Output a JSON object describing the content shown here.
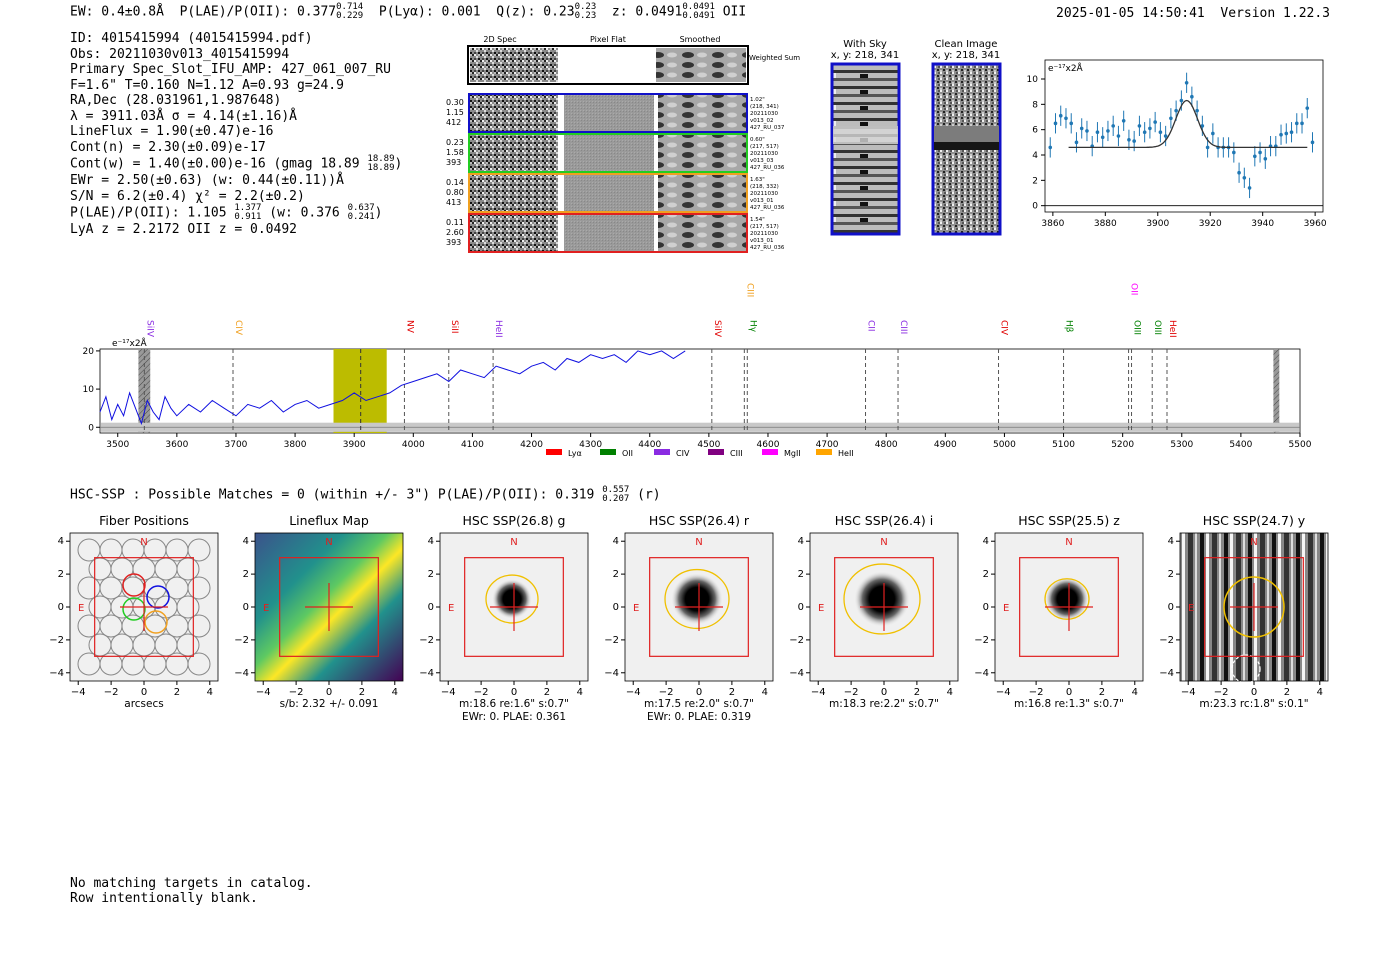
{
  "header": {
    "ew": "EW: 0.4±0.8Å",
    "plae_label": "P(LAE)/P(OII):",
    "plae_val": "0.377",
    "plae_hi": "0.714",
    "plae_lo": "0.229",
    "plya": "P(Lyα): 0.001",
    "qz_label": "Q(z): 0.23",
    "qz_hi": "0.23",
    "qz_lo": "0.23",
    "z_label": "z: 0.0491",
    "z_hi": "0.0491",
    "z_lo": "0.0491",
    "z_line": "OII",
    "timestamp": "2025-01-05 14:50:41",
    "version": "Version 1.22.3"
  },
  "info": {
    "id": "ID: 4015415994 (4015415994.pdf)",
    "obs": "Obs: 20211030v013_4015415994",
    "primary": "Primary Spec_Slot_IFU_AMP: 427_061_007_RU",
    "seeing": "F=1.6\"  T=0.160  N=1.12  A=0.93  g=24.9",
    "radec": "RA,Dec (28.031961,1.987648)",
    "lambda": "λ = 3911.03Å  σ = 4.14(±1.16)Å",
    "lineflux": "LineFlux = 1.90(±0.47)e-16",
    "contn": "Cont(n) = 2.30(±0.09)e-17",
    "contw": "Cont(w) = 1.40(±0.00)e-16 (gmag 18.89",
    "contw_hi": "18.89",
    "contw_lo": "18.89",
    "ewr": "EWr = 2.50(±0.63) (w: 0.44(±0.11))Å",
    "sn": "S/N = 6.2(±0.4)  χ² = 2.2(±0.2)",
    "plae": "P(LAE)/P(OII): 1.105",
    "plae_hi": "1.377",
    "plae_lo": "0.911",
    "plae_w": "(w: 0.376",
    "plae_w_hi": "0.637",
    "plae_w_lo": "0.241",
    "lya_z": "LyA z = 2.2172  OII z = 0.0492"
  },
  "stamps": {
    "col_2dspec": "2D Spec",
    "col_pixflat": "Pixel Flat",
    "col_smoothed": "Smoothed",
    "weighted_sum": "Weighted Sum",
    "rows": [
      {
        "w": "0.30",
        "n": "1.15",
        "c": "412",
        "meta": [
          "1.02\"",
          "(218, 341)",
          "20211030",
          "v013_02",
          "427_RU_037"
        ],
        "color": "#1010c8"
      },
      {
        "w": "0.23",
        "n": "1.58",
        "c": "393",
        "meta": [
          "0.60\"",
          "(217, 517)",
          "20211030",
          "v013_03",
          "427_RU_036"
        ],
        "color": "#22cc22"
      },
      {
        "w": "0.14",
        "n": "0.80",
        "c": "413",
        "meta": [
          "1.63\"",
          "(218, 332)",
          "20211030",
          "v013_01",
          "427_RU_036"
        ],
        "color": "#f0a020"
      },
      {
        "w": "0.11",
        "n": "2.60",
        "c": "393",
        "meta": [
          "1.54\"",
          "(217, 517)",
          "20211030",
          "v013_01",
          "427_RU_036"
        ],
        "color": "#e02020"
      }
    ],
    "with_sky_title": "With Sky",
    "with_sky_xy": "x, y: 218, 341",
    "clean_title": "Clean Image",
    "clean_xy": "x, y: 218, 341"
  },
  "zoom_chart": {
    "ylabel": "e⁻¹⁷x2Å"
  },
  "full_spectrum": {
    "ylabel": "e⁻¹⁷x2Å",
    "lines": [
      {
        "name": "SiIV",
        "wave": 3545,
        "color": "#8a2be2"
      },
      {
        "name": "CIV",
        "wave": 3695,
        "color": "#f0a020"
      },
      {
        "name": "NV",
        "wave": 3985,
        "color": "#e00000"
      },
      {
        "name": "SiII",
        "wave": 4060,
        "color": "#e00000"
      },
      {
        "name": "HeII",
        "wave": 4135,
        "color": "#8a2be2"
      },
      {
        "name": "SiIV",
        "wave": 4505,
        "color": "#e00000"
      },
      {
        "name": "CIII",
        "wave": 4560,
        "color": "#f0a020"
      },
      {
        "name": "Hγ",
        "wave": 4565,
        "color": "#008000"
      },
      {
        "name": "CII",
        "wave": 4765,
        "color": "#8a2be2"
      },
      {
        "name": "CIII",
        "wave": 4820,
        "color": "#8a2be2"
      },
      {
        "name": "CIV",
        "wave": 4990,
        "color": "#e00000"
      },
      {
        "name": "Hβ",
        "wave": 5100,
        "color": "#008000"
      },
      {
        "name": "OII",
        "wave": 5210,
        "color": "#ff00ff"
      },
      {
        "name": "OIII",
        "wave": 5215,
        "color": "#008000"
      },
      {
        "name": "OIII",
        "wave": 5250,
        "color": "#008000"
      },
      {
        "name": "HeII",
        "wave": 5275,
        "color": "#e00000"
      }
    ],
    "legend": [
      {
        "label": "Lyα",
        "color": "#ff0000"
      },
      {
        "label": "OII",
        "color": "#008000"
      },
      {
        "label": "CIV",
        "color": "#8a2be2"
      },
      {
        "label": "CIII",
        "color": "#800080"
      },
      {
        "label": "MgII",
        "color": "#ff00ff"
      },
      {
        "label": "HeII",
        "color": "#ffa500"
      }
    ]
  },
  "chart_data": [
    {
      "type": "scatter",
      "xlabel": "",
      "ylabel": "e⁻¹⁷x2Å",
      "xlim": [
        3857,
        3963
      ],
      "ylim": [
        -0.5,
        11.5
      ],
      "xticks": [
        3860,
        3880,
        3900,
        3920,
        3940,
        3960
      ],
      "yticks": [
        0,
        2,
        4,
        6,
        8,
        10
      ],
      "series": [
        {
          "x": [
            3859,
            3861,
            3863,
            3865,
            3867,
            3869,
            3871,
            3873,
            3875,
            3877,
            3879,
            3881,
            3883,
            3885,
            3887,
            3889,
            3891,
            3893,
            3895,
            3897,
            3899,
            3901,
            3903,
            3905,
            3907,
            3909,
            3911,
            3913,
            3915,
            3917,
            3919,
            3921,
            3923,
            3925,
            3927,
            3929,
            3931,
            3933,
            3935,
            3937,
            3939,
            3941,
            3943,
            3945,
            3947,
            3949,
            3951,
            3953,
            3955,
            3957,
            3959
          ],
          "y": [
            4.6,
            6.5,
            7.1,
            6.9,
            6.5,
            5.0,
            6.1,
            5.9,
            4.7,
            5.8,
            5.4,
            5.9,
            6.3,
            5.5,
            6.7,
            5.2,
            5.1,
            6.3,
            5.8,
            6.1,
            6.6,
            5.8,
            5.5,
            6.9,
            7.5,
            8.3,
            9.7,
            8.6,
            7.5,
            6.3,
            4.6,
            5.7,
            4.6,
            4.6,
            4.6,
            4.2,
            2.6,
            2.2,
            1.4,
            3.9,
            4.2,
            3.7,
            4.7,
            4.7,
            5.6,
            5.7,
            5.8,
            6.5,
            6.5,
            7.7,
            5.0
          ]
        }
      ],
      "fit": {
        "continuum": 4.6,
        "peak": 8.3,
        "center": 3911.03,
        "sigma": 4.14
      }
    },
    {
      "type": "line",
      "xlabel": "",
      "ylabel": "e⁻¹⁷x2Å",
      "xlim": [
        3470,
        5500
      ],
      "ylim": [
        -1.5,
        20.5
      ],
      "xticks": [
        3500,
        3600,
        3700,
        3800,
        3900,
        4000,
        4100,
        4200,
        4300,
        4400,
        4500,
        4600,
        4700,
        4800,
        4900,
        5000,
        5100,
        5200,
        5300,
        5400,
        5500
      ],
      "yticks": [
        0,
        10,
        20
      ],
      "series": [
        {
          "name": "",
          "x": [
            3470,
            3480,
            3490,
            3500,
            3510,
            3520,
            3530,
            3540,
            3550,
            3560,
            3570,
            3580,
            3590,
            3600,
            3620,
            3640,
            3660,
            3680,
            3700,
            3720,
            3740,
            3760,
            3780,
            3800,
            3820,
            3840,
            3860,
            3880,
            3900,
            3910,
            3920,
            3940,
            3960,
            3980,
            4000,
            4020,
            4040,
            4060,
            4080,
            4100,
            4120,
            4140,
            4160,
            4180,
            4200,
            4220,
            4240,
            4260,
            4280,
            4300,
            4320,
            4340,
            4360,
            4380,
            4400,
            4420,
            4440,
            4460
          ],
          "y": [
            4,
            8,
            2,
            6,
            3,
            9,
            5,
            1,
            7,
            4,
            2,
            8,
            5,
            3,
            6,
            4,
            7,
            5,
            3,
            6,
            5,
            7,
            4,
            6,
            7,
            5,
            6,
            7,
            9,
            8,
            7,
            8,
            9,
            11,
            12,
            13,
            14,
            12,
            15,
            14,
            13,
            16,
            15,
            14,
            16,
            17,
            15,
            18,
            17,
            19,
            18,
            19,
            17,
            20,
            19,
            20,
            18,
            20
          ]
        }
      ],
      "highlight_x": [
        3865,
        3955
      ],
      "marker_x": 3911
    },
    {
      "type": "heatmap",
      "title": "Fiber Positions",
      "xlabel": "arcsecs",
      "xlim": [
        -4.5,
        4.5
      ],
      "ylim": [
        -4.5,
        4.5
      ]
    },
    {
      "type": "heatmap",
      "title": "Lineflux Map",
      "xlabel": "s/b: 2.32 +/- 0.091",
      "xlim": [
        -4.5,
        4.5
      ],
      "ylim": [
        -4.5,
        4.5
      ]
    }
  ],
  "hsc": {
    "line": "HSC-SSP : Possible Matches = 0 (within +/- 3\")  P(LAE)/P(OII): 0.319",
    "hi": "0.557",
    "lo": "0.207",
    "band": "(r)",
    "panels": [
      {
        "title": "Fiber Positions",
        "cap1": "arcsecs",
        "cap2": ""
      },
      {
        "title": "Lineflux Map",
        "cap1": "s/b: 2.32 +/- 0.091",
        "cap2": ""
      },
      {
        "title": "HSC SSP(26.8) g",
        "cap1": "m:18.6  re:1.6\"  s:0.7\"",
        "cap2": "EWr: 0, PLAE: 0.361"
      },
      {
        "title": "HSC SSP(26.4) r",
        "cap1": "m:17.5  re:2.0\"  s:0.7\"",
        "cap2": "EWr: 0, PLAE: 0.319"
      },
      {
        "title": "HSC SSP(26.4) i",
        "cap1": "m:18.3  re:2.2\"  s:0.7\"",
        "cap2": ""
      },
      {
        "title": "HSC SSP(25.5) z",
        "cap1": "m:16.8  re:1.3\"  s:0.7\"",
        "cap2": ""
      },
      {
        "title": "HSC SSP(24.7) y",
        "cap1": "m:23.3  rc:1.8\"  s:0.1\"",
        "cap2": ""
      }
    ],
    "n_label": "N",
    "e_label": "E",
    "ticks": [
      "−4",
      "−2",
      "0",
      "2",
      "4"
    ]
  },
  "footer": {
    "line1": "No matching targets in catalog.",
    "line2": "Row intentionally blank."
  }
}
